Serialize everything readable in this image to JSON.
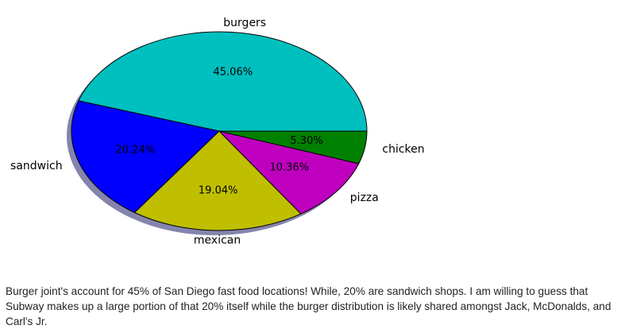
{
  "chart_data": {
    "type": "pie",
    "categories": [
      "burgers",
      "sandwich",
      "mexican",
      "pizza",
      "chicken"
    ],
    "values": [
      45.06,
      20.24,
      19.04,
      10.36,
      5.3
    ],
    "percent_labels": [
      "45.06%",
      "20.24%",
      "19.04%",
      "10.36%",
      "5.30%"
    ],
    "colors": [
      "#00bfbf",
      "#0000ff",
      "#bfbf00",
      "#bf00bf",
      "#008000"
    ],
    "shadow_color": "#6f6f9f",
    "start_angle_deg": 0,
    "direction": "counterclockwise",
    "shadow": true,
    "legend": "none"
  },
  "caption": {
    "text": "Burger joint's account for 45% of San Diego fast food locations! While, 20% are sandwich shops. I am willing to guess that Subway makes up a large portion of that 20% itself while the burger distribution is likely shared amongst Jack, McDonalds, and Carl's Jr."
  }
}
